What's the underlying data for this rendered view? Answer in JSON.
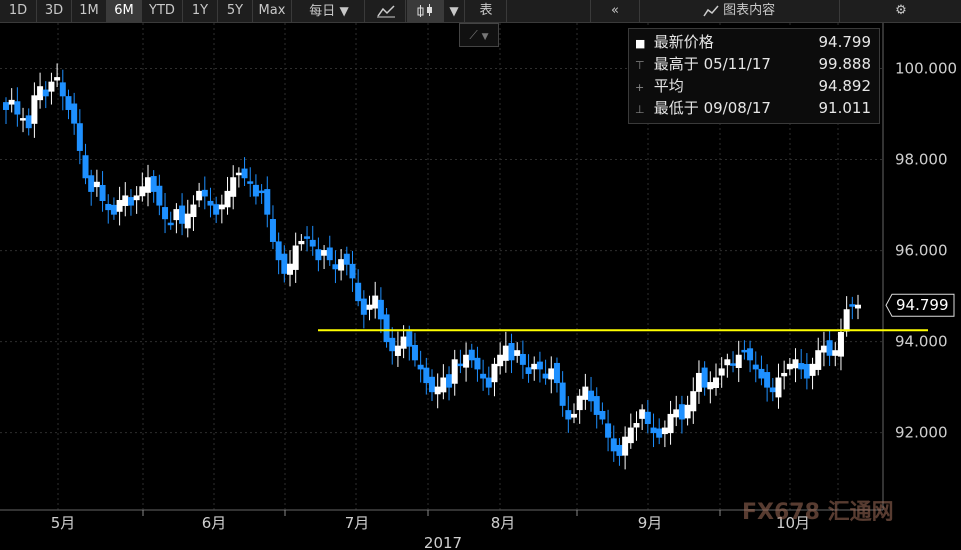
{
  "toolbar": {
    "ranges": [
      "1D",
      "3D",
      "1M",
      "6M",
      "YTD",
      "1Y",
      "5Y",
      "Max"
    ],
    "active_range": "6M",
    "frequency": "每日",
    "table_label": "表",
    "chart_content_label": "图表内容"
  },
  "legend": {
    "last": {
      "label": "最新价格",
      "value": "94.799"
    },
    "high": {
      "label": "最高于",
      "date": "05/11/17",
      "value": "99.888"
    },
    "avg": {
      "label": "平均",
      "value": "94.892"
    },
    "low": {
      "label": "最低于",
      "date": "09/08/17",
      "value": "91.011"
    }
  },
  "watermark": "FX678 汇通网",
  "colors": {
    "up": "#ffffff",
    "down": "#1e90ff",
    "resistance": "#ffff00",
    "background": "#000000",
    "grid": "#2e2e2e"
  },
  "chart_data": {
    "type": "candlestick",
    "ylim": [
      90.3,
      101.0
    ],
    "yticks": [
      92.0,
      94.0,
      96.0,
      98.0,
      100.0
    ],
    "ytick_labels": [
      "92.000",
      "94.000",
      "96.000",
      "98.000",
      "100.000"
    ],
    "months": [
      "5月",
      "6月",
      "7月",
      "8月",
      "9月",
      "10月"
    ],
    "year_label": "2017",
    "last_price": "94.799",
    "horizontal_line": 94.25,
    "closes": [
      99.1,
      99.3,
      99.0,
      98.9,
      98.7,
      99.4,
      99.6,
      99.4,
      99.7,
      99.8,
      99.4,
      99.1,
      98.8,
      98.2,
      97.6,
      97.3,
      97.5,
      97.1,
      96.9,
      96.8,
      97.1,
      97.2,
      97.0,
      97.2,
      97.4,
      97.6,
      97.3,
      97.0,
      96.7,
      96.6,
      96.9,
      96.6,
      96.8,
      97.0,
      97.3,
      97.2,
      97.0,
      96.8,
      97.0,
      97.3,
      97.6,
      97.7,
      97.6,
      97.5,
      97.2,
      97.3,
      96.8,
      96.2,
      95.8,
      95.5,
      95.7,
      96.1,
      96.2,
      96.3,
      96.1,
      95.8,
      96.0,
      95.8,
      95.6,
      95.8,
      95.7,
      95.4,
      94.9,
      94.6,
      94.8,
      95.0,
      94.5,
      94.0,
      93.8,
      93.9,
      94.1,
      93.9,
      93.6,
      93.4,
      93.1,
      92.9,
      93.0,
      93.2,
      93.0,
      93.6,
      93.5,
      93.7,
      93.6,
      93.4,
      93.2,
      93.0,
      93.5,
      93.7,
      93.9,
      93.6,
      93.8,
      93.5,
      93.3,
      93.5,
      93.4,
      93.2,
      93.4,
      93.1,
      92.6,
      92.3,
      92.4,
      92.8,
      93.0,
      92.7,
      92.4,
      92.3,
      91.9,
      91.6,
      91.5,
      91.9,
      92.1,
      92.2,
      92.5,
      92.2,
      92.0,
      91.9,
      92.1,
      92.4,
      92.5,
      92.3,
      92.6,
      92.9,
      93.3,
      93.0,
      93.1,
      93.2,
      93.4,
      93.6,
      93.5,
      93.7,
      93.8,
      93.6,
      93.4,
      93.2,
      93.0,
      92.9,
      93.2,
      93.3,
      93.5,
      93.6,
      93.4,
      93.2,
      93.5,
      93.8,
      93.9,
      93.7,
      93.8,
      94.2,
      94.7,
      94.8,
      94.799
    ]
  }
}
